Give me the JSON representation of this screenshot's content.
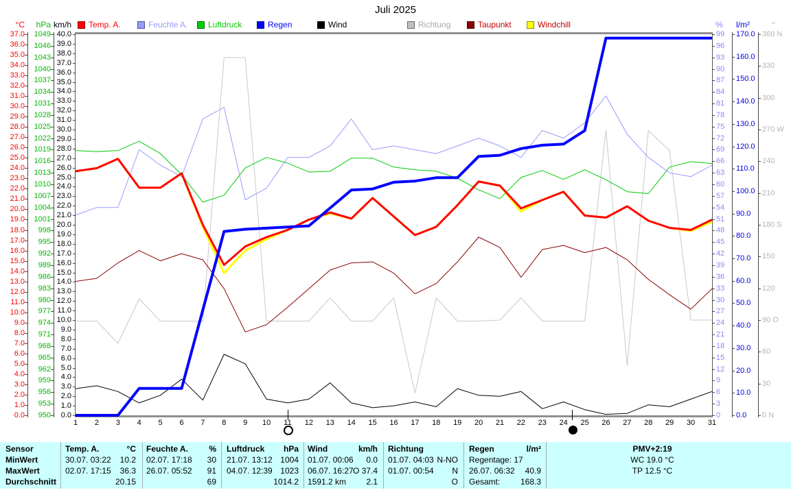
{
  "title": "Juli 2025",
  "header": {
    "legend": [
      {
        "label": "Temp. A.",
        "swatch": "#ff0000",
        "text_color": "#ff0000"
      },
      {
        "label": "Feuchte A.",
        "swatch": "#9999ff",
        "text_color": "#9999ff"
      },
      {
        "label": "Luftdruck",
        "swatch": "#00cc00",
        "text_color": "#00cc00"
      },
      {
        "label": "Regen",
        "swatch": "#0000ff",
        "text_color": "#0000ff"
      },
      {
        "label": "Wind",
        "swatch": "#000000",
        "text_color": "#000000"
      },
      {
        "label": "Richtung",
        "swatch": "#c0c0c0",
        "text_color": "#a8a8a8"
      },
      {
        "label": "Taupunkt",
        "swatch": "#8b0000",
        "text_color": "#c00000"
      },
      {
        "label": "Windchill",
        "swatch": "#ffff00",
        "text_color": "#c00000"
      }
    ]
  },
  "axes": {
    "celsius": {
      "unit": "°C",
      "color": "#ff0000",
      "labels": [
        "37.0",
        "36.0",
        "35.0",
        "34.0",
        "33.0",
        "32.0",
        "31.0",
        "30.0",
        "29.0",
        "28.0",
        "27.0",
        "26.0",
        "25.0",
        "24.0",
        "23.0",
        "22.0",
        "21.0",
        "20.0",
        "19.0",
        "18.0",
        "17.0",
        "16.0",
        "15.0",
        "14.0",
        "13.0",
        "12.0",
        "11.0",
        "10.0",
        "9.0",
        "8.0",
        "7.0",
        "6.0",
        "5.0",
        "4.0",
        "3.0",
        "2.0",
        "1.0",
        "0.0"
      ]
    },
    "hpa": {
      "unit": "hPa",
      "color": "#00bb00",
      "labels": [
        "1049",
        "1046",
        "1043",
        "1040",
        "1037",
        "1034",
        "1031",
        "1028",
        "1025",
        "1022",
        "1019",
        "1016",
        "1013",
        "1010",
        "1007",
        "1004",
        "1001",
        "998",
        "995",
        "992",
        "989",
        "986",
        "983",
        "980",
        "977",
        "974",
        "971",
        "968",
        "965",
        "962",
        "959",
        "956",
        "953",
        "950"
      ]
    },
    "kmh": {
      "unit": "km/h",
      "color": "#000000",
      "labels": [
        "40.0",
        "39.0",
        "38.0",
        "37.0",
        "36.0",
        "35.0",
        "34.0",
        "33.0",
        "32.0",
        "31.0",
        "30.0",
        "29.0",
        "28.0",
        "27.0",
        "26.0",
        "25.0",
        "24.0",
        "23.0",
        "22.0",
        "21.0",
        "20.0",
        "19.0",
        "18.0",
        "17.0",
        "16.0",
        "15.0",
        "14.0",
        "13.0",
        "12.0",
        "11.0",
        "10.0",
        "9.0",
        "8.0",
        "7.0",
        "6.0",
        "5.0",
        "4.0",
        "3.0",
        "2.0",
        "1.0",
        "0.0"
      ]
    },
    "percent": {
      "unit": "%",
      "color": "#8888ff",
      "labels": [
        "99",
        "96",
        "93",
        "90",
        "87",
        "84",
        "81",
        "78",
        "75",
        "72",
        "69",
        "66",
        "63",
        "60",
        "57",
        "54",
        "51",
        "48",
        "45",
        "42",
        "39",
        "36",
        "33",
        "30",
        "27",
        "24",
        "21",
        "18",
        "15",
        "12",
        "9",
        "6",
        "3",
        "0"
      ]
    },
    "lm2": {
      "unit": "l/m²",
      "color": "#0000e0",
      "labels": [
        "170.0",
        "160.0",
        "150.0",
        "140.0",
        "130.0",
        "120.0",
        "110.0",
        "100.0",
        "90.0",
        "80.0",
        "70.0",
        "60.0",
        "50.0",
        "40.0",
        "30.0",
        "20.0",
        "10.0",
        "0.0"
      ]
    },
    "compass": {
      "unit": "°",
      "color": "#b4b4b4",
      "labels": [
        "360 N",
        "330",
        "300",
        "270 W",
        "240",
        "210",
        "180 S",
        "150",
        "120",
        "90 O",
        "60",
        "30",
        "0 N"
      ]
    },
    "days": {
      "labels": [
        "1",
        "2",
        "3",
        "4",
        "5",
        "6",
        "7",
        "8",
        "9",
        "10",
        "11",
        "12",
        "13",
        "14",
        "15",
        "16",
        "17",
        "18",
        "19",
        "20",
        "21",
        "22",
        "23",
        "24",
        "25",
        "26",
        "27",
        "28",
        "29",
        "30",
        "31"
      ]
    }
  },
  "chart_data": {
    "type": "line",
    "title": "Juli 2025",
    "x_categories": [
      1,
      2,
      3,
      4,
      5,
      6,
      7,
      8,
      9,
      10,
      11,
      12,
      13,
      14,
      15,
      16,
      17,
      18,
      19,
      20,
      21,
      22,
      23,
      24,
      25,
      26,
      27,
      28,
      29,
      30,
      31
    ],
    "axis_ranges": {
      "celsius": [
        0,
        37
      ],
      "hpa": [
        950,
        1049
      ],
      "kmh": [
        0,
        40
      ],
      "percent": [
        0,
        99
      ],
      "lm2": [
        0,
        170
      ],
      "compass_deg": [
        0,
        360
      ]
    },
    "grid": true,
    "legend_position": "top",
    "series": [
      {
        "name": "Richtung",
        "unit": "°",
        "color": "#c8c8c8",
        "width": 1,
        "range": [
          0,
          360
        ],
        "values": [
          89,
          89,
          68,
          110,
          89,
          89,
          89,
          338,
          338,
          89,
          89,
          89,
          111,
          89,
          89,
          111,
          21,
          111,
          89,
          89,
          90,
          111,
          89,
          89,
          89,
          269,
          47,
          269,
          250,
          90,
          90
        ]
      },
      {
        "name": "Windchill",
        "unit": "°C",
        "color": "#ffff00",
        "width": 3,
        "range": [
          0,
          37
        ],
        "values": [
          23.7,
          24.0,
          24.9,
          22.1,
          22.1,
          23.5,
          18.3,
          13.8,
          16.0,
          17.1,
          18.0,
          19.0,
          19.6,
          19.1,
          21.1,
          19.3,
          17.5,
          18.3,
          20.4,
          22.7,
          22.3,
          19.8,
          20.9,
          21.7,
          19.4,
          19.2,
          20.3,
          18.9,
          18.2,
          17.9,
          18.8
        ]
      },
      {
        "name": "Taupunkt",
        "unit": "°C",
        "color": "#8b0000",
        "width": 1,
        "range": [
          0,
          37
        ],
        "values": [
          13.0,
          13.3,
          14.8,
          16.0,
          15.0,
          15.7,
          15.1,
          12.3,
          8.1,
          8.8,
          10.5,
          12.3,
          14.1,
          14.8,
          14.9,
          13.8,
          11.8,
          12.8,
          14.9,
          17.3,
          16.3,
          13.4,
          16.1,
          16.5,
          15.8,
          16.3,
          15.1,
          13.2,
          11.7,
          10.3,
          12.3
        ]
      },
      {
        "name": "Luftdruck",
        "unit": "hPa",
        "color": "#00cc00",
        "width": 1,
        "range": [
          950,
          1049
        ],
        "values": [
          1018.8,
          1018.5,
          1018.8,
          1021.2,
          1018.0,
          1012.5,
          1005.4,
          1007.2,
          1014.3,
          1017.0,
          1015.5,
          1013.2,
          1013.4,
          1016.8,
          1016.8,
          1014.5,
          1013.8,
          1013.4,
          1011.6,
          1008.6,
          1006.3,
          1011.8,
          1013.6,
          1011.3,
          1013.8,
          1011.2,
          1008.1,
          1007.6,
          1014.5,
          1015.9,
          1015.4
        ]
      },
      {
        "name": "Feuchte A.",
        "unit": "%",
        "color": "#9999ff",
        "width": 1,
        "range": [
          0,
          99
        ],
        "values": [
          52,
          54,
          54,
          69,
          65,
          62,
          77,
          80,
          56,
          59,
          67,
          67,
          70,
          77,
          69,
          70,
          69,
          68,
          70,
          72,
          70,
          67,
          74,
          72,
          76,
          83,
          73,
          67,
          63,
          62,
          65
        ]
      },
      {
        "name": "Wind",
        "unit": "km/h",
        "color": "#000000",
        "width": 1,
        "range": [
          0,
          40
        ],
        "values": [
          2.8,
          3.1,
          2.5,
          1.3,
          2.1,
          3.8,
          1.6,
          6.4,
          5.4,
          1.7,
          1.3,
          1.7,
          3.4,
          1.3,
          0.8,
          1.0,
          1.4,
          0.9,
          2.8,
          2.1,
          2.0,
          2.5,
          0.7,
          1.4,
          0.6,
          0.1,
          0.2,
          1.1,
          0.9,
          1.7,
          2.5
        ]
      },
      {
        "name": "Temp. A.",
        "unit": "°C",
        "color": "#ff0000",
        "width": 3,
        "range": [
          0,
          37
        ],
        "values": [
          23.7,
          24.0,
          24.9,
          22.1,
          22.1,
          23.5,
          18.5,
          14.6,
          16.4,
          17.3,
          18.0,
          19.0,
          19.7,
          19.1,
          21.1,
          19.3,
          17.5,
          18.3,
          20.4,
          22.7,
          22.3,
          20.1,
          20.9,
          21.7,
          19.4,
          19.2,
          20.3,
          18.9,
          18.2,
          18.0,
          19.0
        ]
      },
      {
        "name": "Regen",
        "unit": "l/m²",
        "color": "#0000ff",
        "width": 4,
        "range": [
          0,
          170
        ],
        "values": [
          0,
          0,
          0,
          12,
          12,
          12,
          47,
          82,
          83,
          83.5,
          84,
          84.5,
          92.5,
          100.5,
          101,
          104,
          104.5,
          106,
          106,
          115.5,
          116,
          119,
          120.5,
          121,
          127,
          168.3,
          168.3,
          168.3,
          168.3,
          168.3,
          168.3
        ]
      }
    ],
    "moon_markers": [
      {
        "shape": "open-circle",
        "day": 11
      },
      {
        "shape": "filled-circle",
        "day": 24.4
      }
    ]
  },
  "table": {
    "row_labels": [
      "Sensor",
      "MinWert",
      "MaxWert",
      "Durchschnitt"
    ],
    "columns": [
      {
        "title": "Temp. A.",
        "unit": "°C",
        "rows": [
          [
            "30.07.  03:22",
            "10.2"
          ],
          [
            "02.07.  17:15",
            "36.3"
          ],
          [
            "",
            "20.15"
          ]
        ]
      },
      {
        "title": "Feuchte A.",
        "unit": "%",
        "rows": [
          [
            "02.07.  17:18",
            "30"
          ],
          [
            "26.07.  05:52",
            "91"
          ],
          [
            "",
            "69"
          ]
        ]
      },
      {
        "title": "Luftdruck",
        "unit": "hPa",
        "rows": [
          [
            "21.07.  13:12",
            "1004"
          ],
          [
            "04.07.  12:39",
            "1023"
          ],
          [
            "",
            "1014.2"
          ]
        ]
      },
      {
        "title": "Wind",
        "unit": "km/h",
        "rows": [
          [
            "01.07.  00:06",
            "0.0"
          ],
          [
            "06.07.  16:27",
            "O 37.4"
          ],
          [
            "1591.2 km",
            "2.1"
          ]
        ]
      },
      {
        "title": "Richtung",
        "unit": "",
        "rows": [
          [
            "01.07.  04:03",
            "N-NO"
          ],
          [
            "01.07.  00:54",
            "N"
          ],
          [
            "",
            "O"
          ]
        ]
      },
      {
        "title": "Regen",
        "unit": "l/m²",
        "rows": [
          [
            "Regentage: 17",
            ""
          ],
          [
            "26.07.  06:32",
            "40.9"
          ],
          [
            "Gesamt:",
            "168.3"
          ]
        ]
      }
    ],
    "pmv": {
      "title": "PMV+2:19",
      "lines": [
        "WC 19.0 °C",
        "TP 12.5 °C"
      ]
    }
  }
}
